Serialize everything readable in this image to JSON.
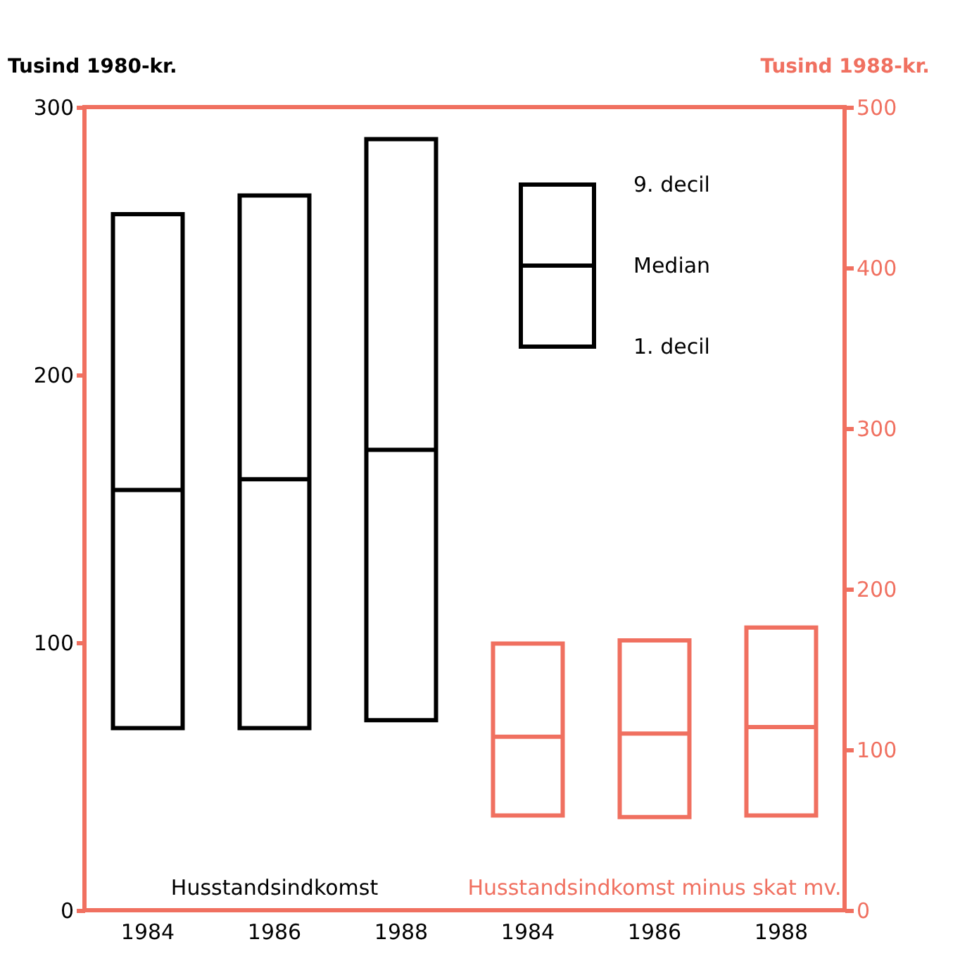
{
  "chart_data": {
    "type": "box",
    "ylabel": "Tusind 1980-kr.",
    "y2label": "Tusind 1988-kr.",
    "categories": [
      "1984",
      "1986",
      "1988",
      "1984",
      "1986",
      "1988"
    ],
    "ylim": [
      0,
      300
    ],
    "yticks": [
      0,
      100,
      200,
      300
    ],
    "y2lim": [
      0,
      500
    ],
    "y2ticks": [
      0,
      100,
      200,
      300,
      400,
      500
    ],
    "grid": false,
    "annotations": [
      "9. decil",
      "Median",
      "1. decil"
    ],
    "series": [
      {
        "name": "Husstandsindkomst",
        "color": "#000000",
        "boxes": [
          {
            "low": 68,
            "q1": 68,
            "median": 157,
            "q3": 260,
            "high": 260
          },
          {
            "low": 68,
            "q1": 68,
            "median": 161,
            "q3": 267,
            "high": 267
          },
          {
            "low": 71,
            "q1": 71,
            "median": 172,
            "q3": 288,
            "high": 288
          },
          null,
          null,
          null
        ]
      },
      {
        "name": "Husstandsindkomst minus skat mv.",
        "color": "#f07060",
        "axis": "y2",
        "boxes": [
          null,
          null,
          null,
          {
            "low": 59,
            "q1": 59,
            "median": 108,
            "q3": 166,
            "high": 166
          },
          {
            "low": 58,
            "q1": 58,
            "median": 110,
            "q3": 168,
            "high": 168
          },
          {
            "low": 59,
            "q1": 59,
            "median": 114,
            "q3": 176,
            "high": 176
          }
        ]
      }
    ]
  }
}
